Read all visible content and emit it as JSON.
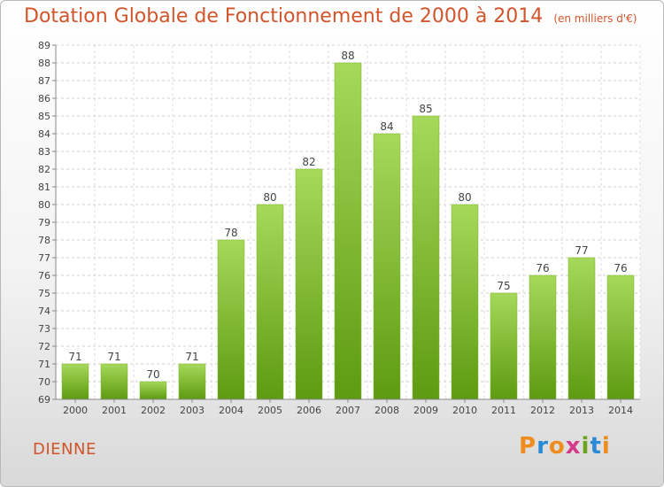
{
  "title": "Dotation Globale de Fonctionnement de 2000 à 2014",
  "unit_note": "(en milliers d'€)",
  "commune": "DIENNE",
  "logo": {
    "letters": [
      "P",
      "r",
      "o",
      "x",
      "i",
      "t",
      "i"
    ],
    "colors": [
      "#f08c1e",
      "#2a8ad6",
      "#f08c1e",
      "#d63b8a",
      "#6aa31e",
      "#2a8ad6",
      "#f08c1e"
    ]
  },
  "chart_data": {
    "type": "bar",
    "categories": [
      "2000",
      "2001",
      "2002",
      "2003",
      "2004",
      "2005",
      "2006",
      "2007",
      "2008",
      "2009",
      "2010",
      "2011",
      "2012",
      "2013",
      "2014"
    ],
    "values": [
      71,
      71,
      70,
      71,
      78,
      80,
      82,
      88,
      84,
      85,
      80,
      75,
      76,
      77,
      76
    ],
    "ylim": [
      69,
      89
    ],
    "yticks": [
      69,
      70,
      71,
      72,
      73,
      74,
      75,
      76,
      77,
      78,
      79,
      80,
      81,
      82,
      83,
      84,
      85,
      86,
      87,
      88,
      89
    ],
    "grid": true,
    "bar_color": "#8cc63f"
  }
}
